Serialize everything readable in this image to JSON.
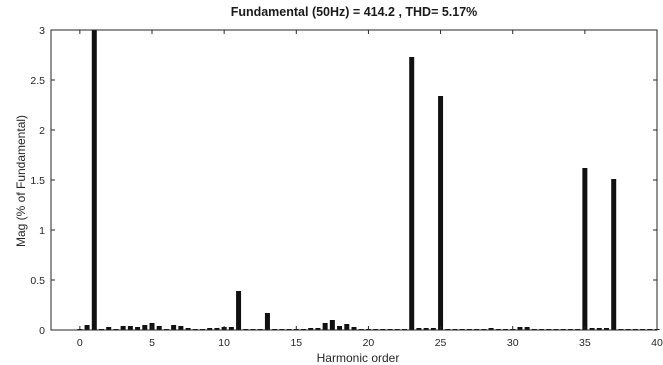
{
  "chart_data": {
    "type": "bar",
    "title": "Fundamental (50Hz) = 414.2 , THD= 5.17%",
    "xlabel": "Harmonic order",
    "ylabel": "Mag (% of Fundamental)",
    "xlim": [
      -2,
      40
    ],
    "ylim": [
      0,
      3
    ],
    "xticks": [
      "0",
      "5",
      "10",
      "15",
      "20",
      "25",
      "30",
      "35",
      "40"
    ],
    "yticks": [
      "0",
      "0.5",
      "1",
      "1.5",
      "2",
      "2.5",
      "3"
    ],
    "grid": false,
    "colors": {
      "bars": "#111111",
      "axes": "#262626"
    },
    "x": [
      0,
      0.5,
      1,
      1.5,
      2,
      2.5,
      3,
      3.5,
      4,
      4.5,
      5,
      5.5,
      6,
      6.5,
      7,
      7.5,
      8,
      8.5,
      9,
      9.5,
      10,
      10.5,
      11,
      11.5,
      12,
      12.5,
      13,
      13.5,
      14,
      14.5,
      15,
      15.5,
      16,
      16.5,
      17,
      17.5,
      18,
      18.5,
      19,
      19.5,
      20,
      20.5,
      21,
      21.5,
      22,
      22.5,
      23,
      23.5,
      24,
      24.5,
      25,
      25.5,
      26,
      26.5,
      27,
      27.5,
      28,
      28.5,
      29,
      29.5,
      30,
      30.5,
      31,
      31.5,
      32,
      32.5,
      33,
      33.5,
      34,
      34.5,
      35,
      35.5,
      36,
      36.5,
      37,
      37.5,
      38,
      38.5,
      39,
      39.5,
      40
    ],
    "values": [
      0.01,
      0.05,
      3.0,
      0.01,
      0.03,
      0.01,
      0.04,
      0.04,
      0.03,
      0.05,
      0.07,
      0.04,
      0.01,
      0.05,
      0.04,
      0.02,
      0.01,
      0.01,
      0.02,
      0.02,
      0.03,
      0.03,
      0.39,
      0.01,
      0.01,
      0.01,
      0.17,
      0.01,
      0.01,
      0.01,
      0.01,
      0.01,
      0.02,
      0.02,
      0.07,
      0.1,
      0.04,
      0.06,
      0.03,
      0.01,
      0.01,
      0.01,
      0.01,
      0.01,
      0.01,
      0.01,
      2.73,
      0.02,
      0.02,
      0.02,
      2.34,
      0.01,
      0.01,
      0.01,
      0.01,
      0.01,
      0.01,
      0.02,
      0.01,
      0.01,
      0.01,
      0.03,
      0.03,
      0.01,
      0.01,
      0.01,
      0.01,
      0.01,
      0.01,
      0.01,
      1.62,
      0.02,
      0.02,
      0.02,
      1.51,
      0.01,
      0.01,
      0.01,
      0.01,
      0.01,
      0.01
    ]
  }
}
